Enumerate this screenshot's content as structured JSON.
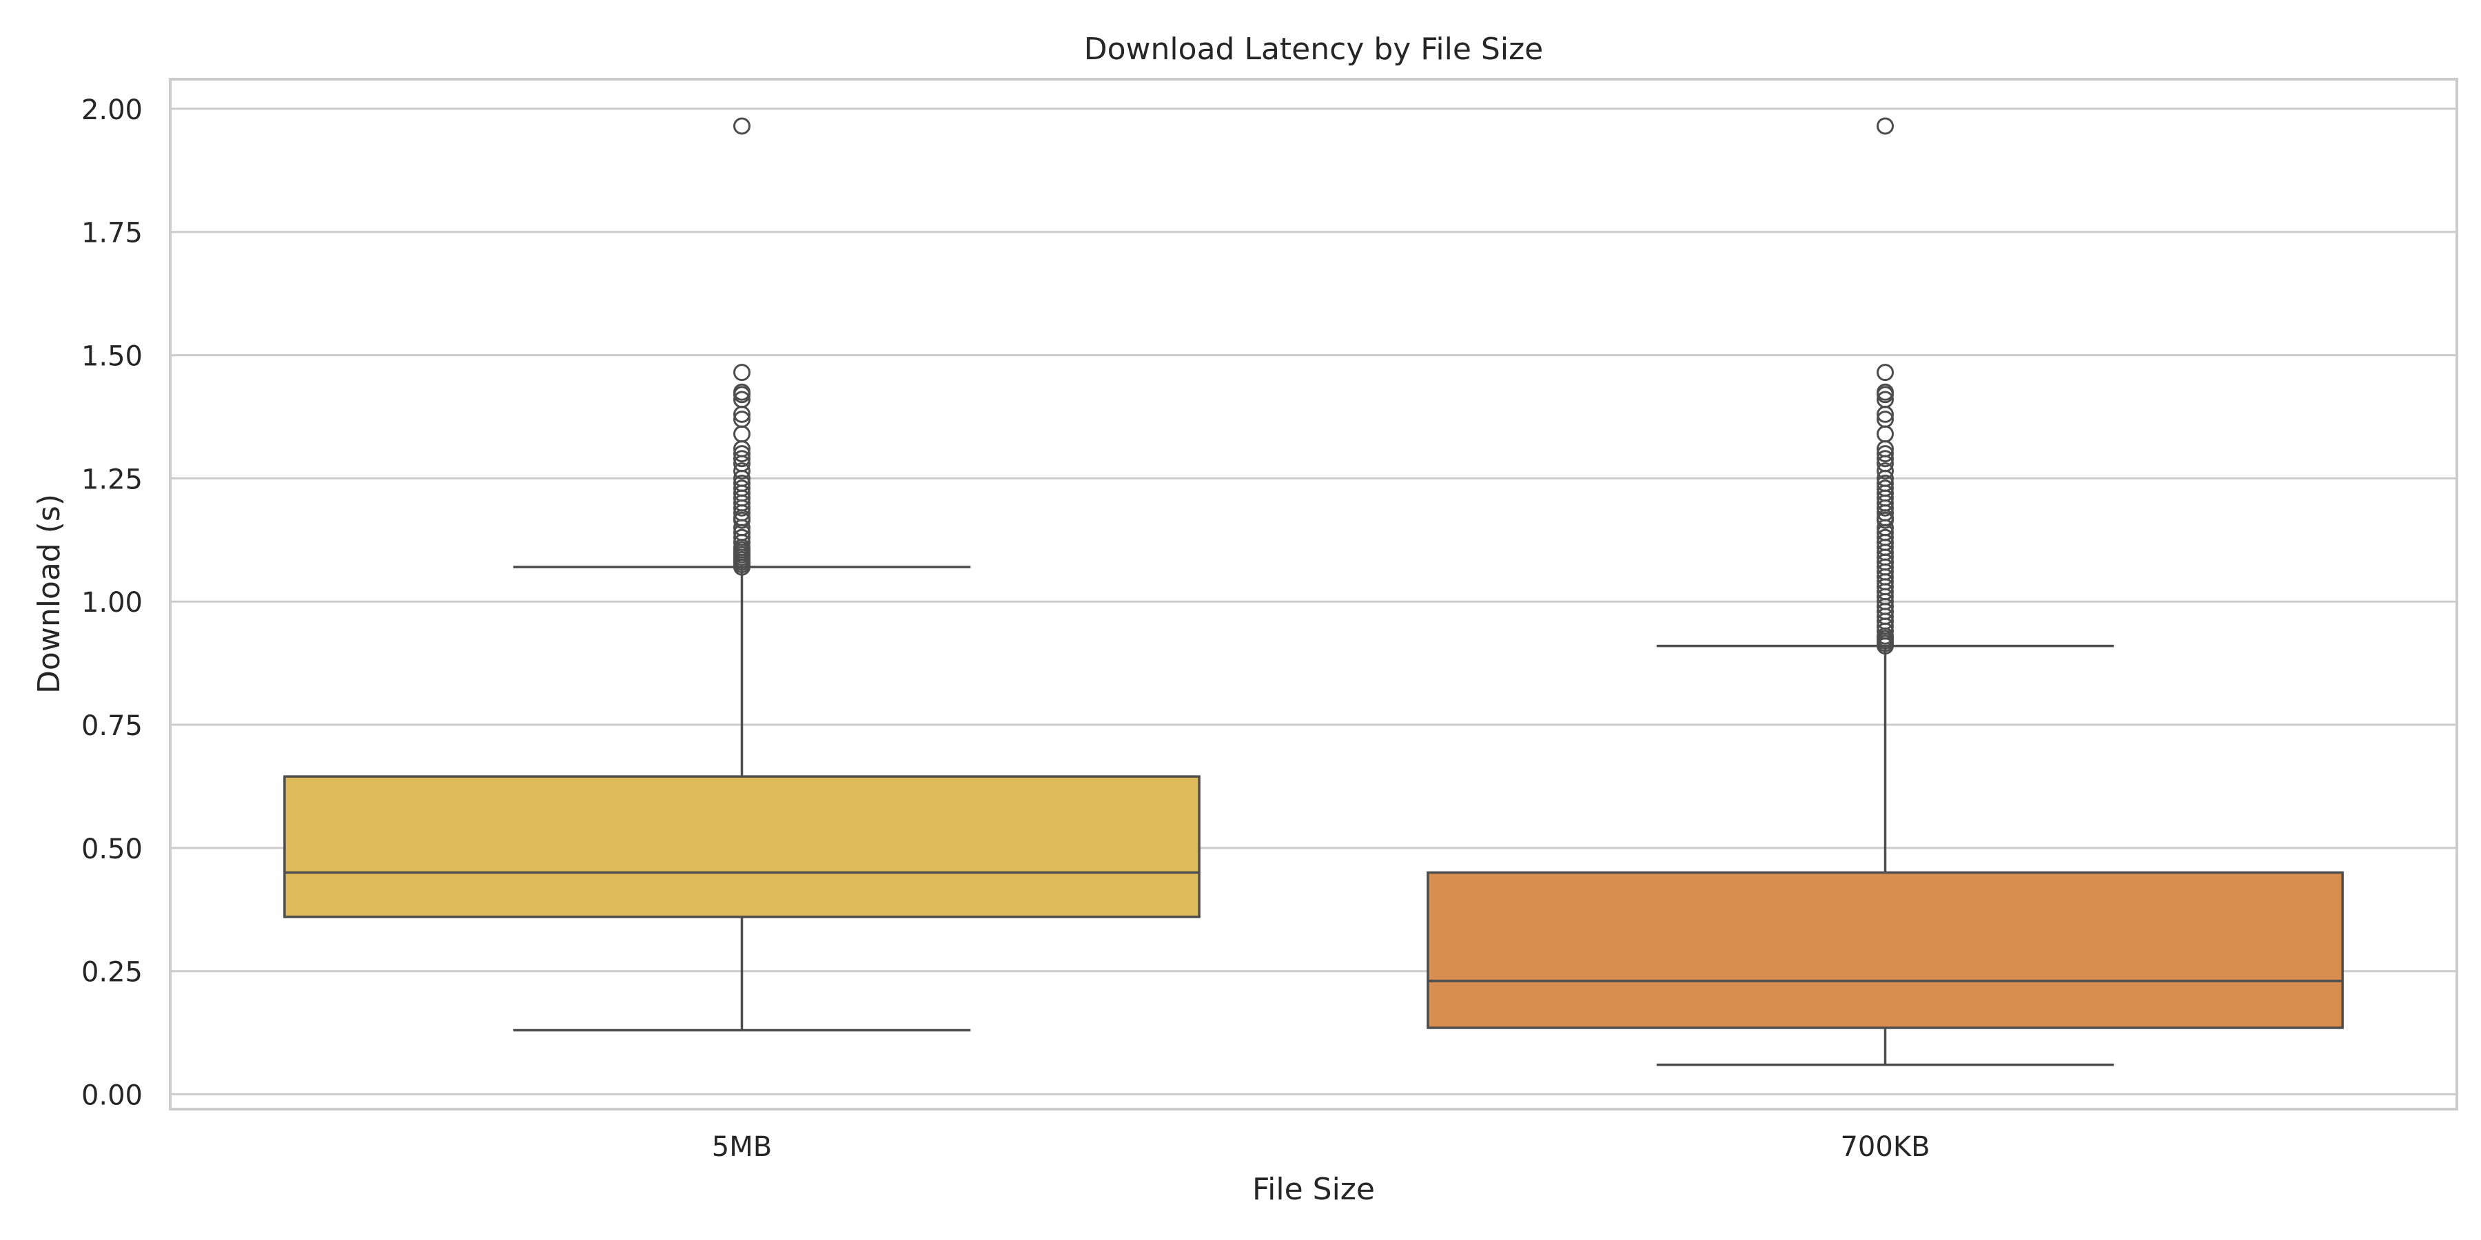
{
  "chart_data": {
    "type": "box",
    "title": "Download Latency by File Size",
    "xlabel": "File Size",
    "ylabel": "Download (s)",
    "ylim": [
      -0.03,
      2.06
    ],
    "yticks": [
      0.0,
      0.25,
      0.5,
      0.75,
      1.0,
      1.25,
      1.5,
      1.75,
      2.0
    ],
    "ytick_labels": [
      "0.00",
      "0.25",
      "0.50",
      "0.75",
      "1.00",
      "1.25",
      "1.50",
      "1.75",
      "2.00"
    ],
    "grid": true,
    "categories": [
      "5MB",
      "700KB"
    ],
    "boxes": [
      {
        "category": "5MB",
        "color": "#DFBA5A",
        "whisker_low": 0.13,
        "q1": 0.36,
        "median": 0.45,
        "q3": 0.645,
        "whisker_high": 1.07,
        "outliers": [
          1.07,
          1.075,
          1.08,
          1.085,
          1.09,
          1.095,
          1.1,
          1.105,
          1.11,
          1.12,
          1.13,
          1.14,
          1.15,
          1.165,
          1.17,
          1.18,
          1.19,
          1.2,
          1.21,
          1.22,
          1.23,
          1.24,
          1.25,
          1.265,
          1.28,
          1.29,
          1.3,
          1.31,
          1.34,
          1.37,
          1.38,
          1.41,
          1.42,
          1.425,
          1.465,
          1.965
        ]
      },
      {
        "category": "700KB",
        "color": "#D98E51",
        "whisker_low": 0.06,
        "q1": 0.135,
        "median": 0.23,
        "q3": 0.45,
        "whisker_high": 0.91,
        "outliers": [
          0.91,
          0.915,
          0.92,
          0.925,
          0.93,
          0.94,
          0.95,
          0.96,
          0.97,
          0.98,
          0.99,
          1.0,
          1.01,
          1.02,
          1.03,
          1.04,
          1.05,
          1.06,
          1.07,
          1.08,
          1.09,
          1.1,
          1.11,
          1.12,
          1.13,
          1.14,
          1.15,
          1.165,
          1.17,
          1.18,
          1.19,
          1.2,
          1.21,
          1.22,
          1.23,
          1.24,
          1.25,
          1.265,
          1.28,
          1.29,
          1.3,
          1.31,
          1.34,
          1.37,
          1.38,
          1.41,
          1.42,
          1.425,
          1.465,
          1.965
        ]
      }
    ]
  }
}
